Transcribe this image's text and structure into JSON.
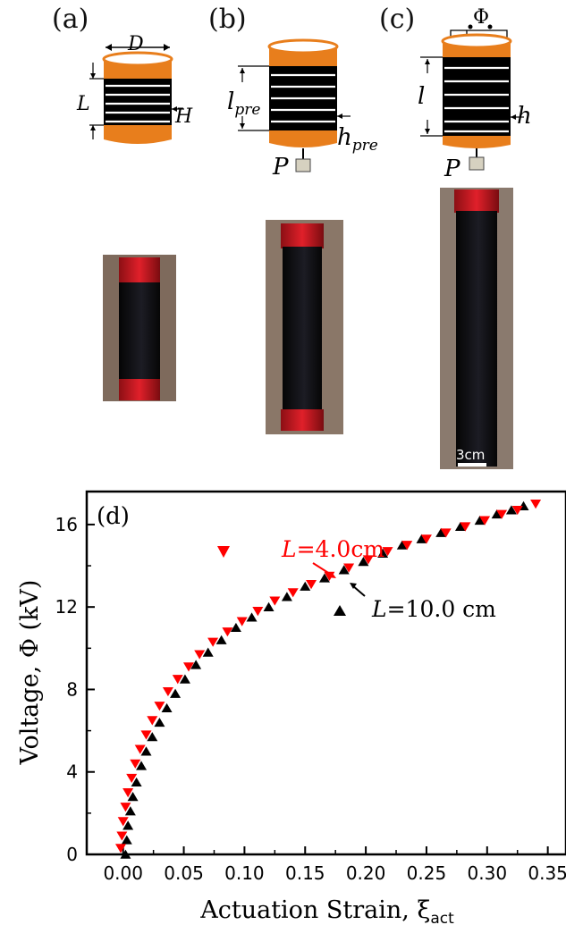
{
  "panels": {
    "a": {
      "label": "(a)",
      "dim_D": "D",
      "dim_L": "L",
      "dim_H": "H"
    },
    "b": {
      "label": "(b)",
      "dim_l": "l",
      "dim_l_sub": "pre",
      "dim_h": "h",
      "dim_h_sub": "pre",
      "force": "P"
    },
    "c": {
      "label": "(c)",
      "dim_l": "l",
      "dim_h": "h",
      "force": "P",
      "voltage": "Φ"
    },
    "photos": {
      "scale_bar": "3cm"
    },
    "d": {
      "label": "(d)"
    }
  },
  "chart_data": {
    "type": "scatter",
    "xlabel": "Actuation Strain, ξ",
    "xlabel_sub": "act",
    "ylabel": "Voltage, Φ (kV)",
    "xlim": [
      -0.03,
      0.365
    ],
    "ylim": [
      0,
      17.6
    ],
    "xticks": [
      "0.00",
      "0.05",
      "0.10",
      "0.15",
      "0.20",
      "0.25",
      "0.30",
      "0.35"
    ],
    "xtick_values": [
      0,
      0.05,
      0.1,
      0.15,
      0.2,
      0.25,
      0.3,
      0.35
    ],
    "yticks": [
      "0",
      "4",
      "8",
      "12",
      "16"
    ],
    "ytick_values": [
      0,
      4,
      8,
      12,
      16
    ],
    "grid": false,
    "series": [
      {
        "legend_prefix": "L",
        "legend_value": "=10.0 cm",
        "marker": "triangle-up",
        "color": "#000000",
        "points": [
          [
            0.002,
            0.0
          ],
          [
            0.003,
            0.7
          ],
          [
            0.004,
            1.4
          ],
          [
            0.006,
            2.1
          ],
          [
            0.008,
            2.8
          ],
          [
            0.011,
            3.5
          ],
          [
            0.015,
            4.3
          ],
          [
            0.019,
            5.0
          ],
          [
            0.024,
            5.7
          ],
          [
            0.03,
            6.4
          ],
          [
            0.036,
            7.1
          ],
          [
            0.043,
            7.8
          ],
          [
            0.051,
            8.5
          ],
          [
            0.06,
            9.2
          ],
          [
            0.07,
            9.8
          ],
          [
            0.081,
            10.4
          ],
          [
            0.093,
            11.0
          ],
          [
            0.106,
            11.5
          ],
          [
            0.12,
            12.0
          ],
          [
            0.135,
            12.5
          ],
          [
            0.15,
            13.0
          ],
          [
            0.166,
            13.4
          ],
          [
            0.182,
            13.8
          ],
          [
            0.198,
            14.2
          ],
          [
            0.214,
            14.6
          ],
          [
            0.23,
            15.0
          ],
          [
            0.246,
            15.3
          ],
          [
            0.262,
            15.6
          ],
          [
            0.278,
            15.9
          ],
          [
            0.294,
            16.2
          ],
          [
            0.308,
            16.5
          ],
          [
            0.32,
            16.7
          ],
          [
            0.33,
            16.9
          ]
        ]
      },
      {
        "legend_prefix": "L",
        "legend_value": "=4.0cm",
        "marker": "triangle-down",
        "color": "#ff0000",
        "points": [
          [
            -0.002,
            0.3
          ],
          [
            -0.001,
            0.9
          ],
          [
            0.0,
            1.6
          ],
          [
            0.002,
            2.3
          ],
          [
            0.004,
            3.0
          ],
          [
            0.007,
            3.7
          ],
          [
            0.01,
            4.4
          ],
          [
            0.014,
            5.1
          ],
          [
            0.019,
            5.8
          ],
          [
            0.024,
            6.5
          ],
          [
            0.03,
            7.2
          ],
          [
            0.037,
            7.9
          ],
          [
            0.045,
            8.5
          ],
          [
            0.054,
            9.1
          ],
          [
            0.063,
            9.7
          ],
          [
            0.074,
            10.3
          ],
          [
            0.086,
            10.8
          ],
          [
            0.098,
            11.3
          ],
          [
            0.111,
            11.8
          ],
          [
            0.125,
            12.3
          ],
          [
            0.14,
            12.7
          ],
          [
            0.155,
            13.1
          ],
          [
            0.17,
            13.5
          ],
          [
            0.186,
            13.9
          ],
          [
            0.202,
            14.3
          ],
          [
            0.218,
            14.7
          ],
          [
            0.234,
            15.0
          ],
          [
            0.25,
            15.3
          ],
          [
            0.266,
            15.6
          ],
          [
            0.282,
            15.9
          ],
          [
            0.298,
            16.2
          ],
          [
            0.312,
            16.5
          ],
          [
            0.325,
            16.7
          ],
          [
            0.34,
            17.0
          ]
        ]
      }
    ]
  }
}
